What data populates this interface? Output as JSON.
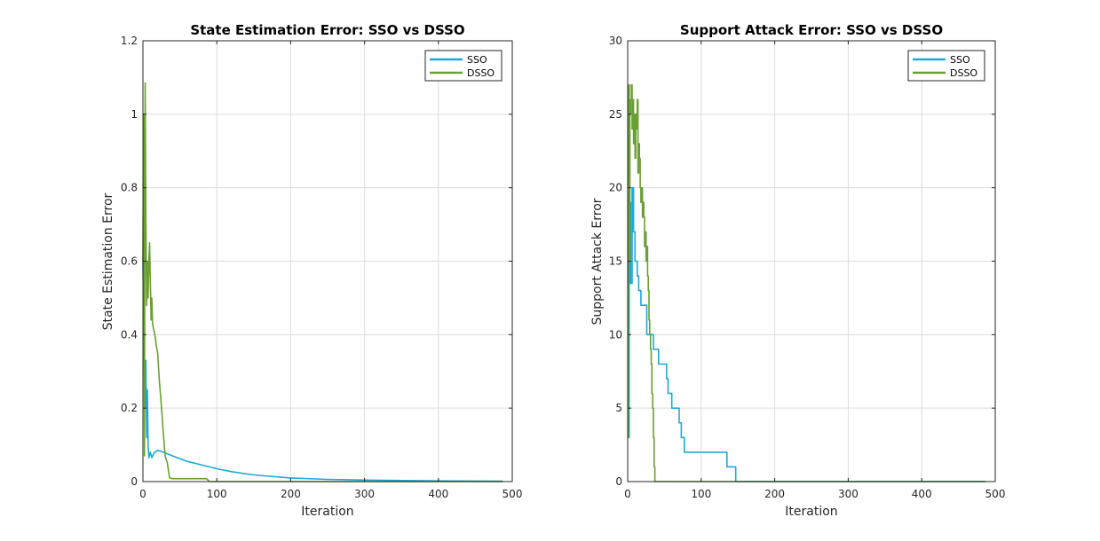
{
  "colors": {
    "sso": "#1ea8d8",
    "dsso": "#6a9f34"
  },
  "chart_data": [
    {
      "type": "line",
      "title": "State Estimation Error: SSO vs DSSO",
      "xlabel": "Iteration",
      "ylabel": "State Estimation Error",
      "xlim": [
        0,
        500
      ],
      "ylim": [
        0,
        1.2
      ],
      "xticks": [
        0,
        100,
        200,
        300,
        400,
        500
      ],
      "yticks": [
        0,
        0.2,
        0.4,
        0.6,
        0.8,
        1,
        1.2
      ],
      "xtick_labels": [
        "0",
        "100",
        "200",
        "300",
        "400",
        "500"
      ],
      "ytick_labels": [
        "0",
        "0.2",
        "0.4",
        "0.6",
        "0.8",
        "1",
        "1.2"
      ],
      "grid": true,
      "legend_location": "top-right",
      "series": [
        {
          "name": "SSO",
          "color": "#1ea8d8",
          "x": [
            0,
            2,
            3,
            4,
            5,
            6,
            7,
            8,
            10,
            12,
            15,
            20,
            25,
            30,
            40,
            50,
            60,
            80,
            100,
            120,
            150,
            200,
            250,
            300,
            350,
            400,
            450,
            487
          ],
          "y": [
            0.6,
            0.3,
            0.2,
            0.33,
            0.12,
            0.25,
            0.1,
            0.065,
            0.08,
            0.065,
            0.078,
            0.085,
            0.082,
            0.078,
            0.07,
            0.062,
            0.055,
            0.045,
            0.035,
            0.027,
            0.018,
            0.01,
            0.006,
            0.004,
            0.003,
            0.002,
            0.0015,
            0.001
          ]
        },
        {
          "name": "DSSO",
          "color": "#6a9f34",
          "x": [
            0,
            1,
            2,
            3,
            4,
            5,
            6,
            7,
            8,
            9,
            10,
            11,
            12,
            13,
            14,
            15,
            16,
            17,
            18,
            19,
            20,
            22,
            24,
            26,
            28,
            30,
            33,
            36,
            40,
            60,
            86,
            90,
            150,
            250,
            350,
            487
          ],
          "y": [
            0.6,
            1.0,
            0.07,
            1.085,
            0.72,
            0.48,
            0.6,
            0.5,
            0.6,
            0.65,
            0.55,
            0.44,
            0.5,
            0.43,
            0.42,
            0.41,
            0.4,
            0.39,
            0.37,
            0.36,
            0.35,
            0.28,
            0.23,
            0.18,
            0.12,
            0.07,
            0.05,
            0.01,
            0.008,
            0.008,
            0.008,
            0.0,
            0.0,
            0.0,
            0.0,
            0.0
          ]
        }
      ]
    },
    {
      "type": "line",
      "title": "Support Attack Error: SSO vs DSSO",
      "xlabel": "Iteration",
      "ylabel": "Support Attack Error",
      "xlim": [
        0,
        500
      ],
      "ylim": [
        0,
        30
      ],
      "xticks": [
        0,
        100,
        200,
        300,
        400,
        500
      ],
      "yticks": [
        0,
        5,
        10,
        15,
        20,
        25,
        30
      ],
      "xtick_labels": [
        "0",
        "100",
        "200",
        "300",
        "400",
        "500"
      ],
      "ytick_labels": [
        "0",
        "5",
        "10",
        "15",
        "20",
        "25",
        "30"
      ],
      "grid": true,
      "legend_location": "top-right",
      "series": [
        {
          "name": "SSO",
          "color": "#1ea8d8",
          "x": [
            0,
            2,
            4,
            6,
            8,
            10,
            13,
            15,
            18,
            22,
            26,
            30,
            35,
            40,
            42,
            48,
            53,
            55,
            60,
            65,
            70,
            73,
            77,
            80,
            90,
            100,
            120,
            135,
            140,
            146,
            147,
            200,
            300,
            400,
            487
          ],
          "y": [
            3,
            19,
            13.5,
            20,
            17,
            15,
            14,
            13,
            12,
            12,
            10,
            10,
            9,
            9,
            8,
            8,
            7,
            6,
            5,
            5,
            4,
            3,
            2,
            2,
            2,
            2,
            2,
            1,
            1,
            1,
            0,
            0,
            0,
            0,
            0
          ],
          "step": true
        },
        {
          "name": "DSSO",
          "color": "#6a9f34",
          "x": [
            0,
            1,
            2,
            3,
            4,
            5,
            6,
            7,
            8,
            9,
            10,
            11,
            12,
            13,
            14,
            15,
            16,
            17,
            18,
            19,
            20,
            21,
            22,
            23,
            24,
            25,
            26,
            27,
            28,
            29,
            30,
            31,
            32,
            33,
            34,
            35,
            36,
            37,
            38,
            100,
            200,
            300,
            400,
            487
          ],
          "y": [
            3,
            27,
            15,
            25,
            26,
            27,
            24,
            26,
            23,
            25,
            22,
            25,
            24,
            26,
            21,
            23,
            22,
            20,
            19,
            20,
            18,
            19,
            18,
            16,
            17,
            15,
            16,
            14,
            13,
            11,
            10,
            9,
            8,
            6,
            5,
            3,
            1,
            0,
            0,
            0,
            0,
            0,
            0,
            0
          ],
          "step": true
        }
      ]
    }
  ]
}
